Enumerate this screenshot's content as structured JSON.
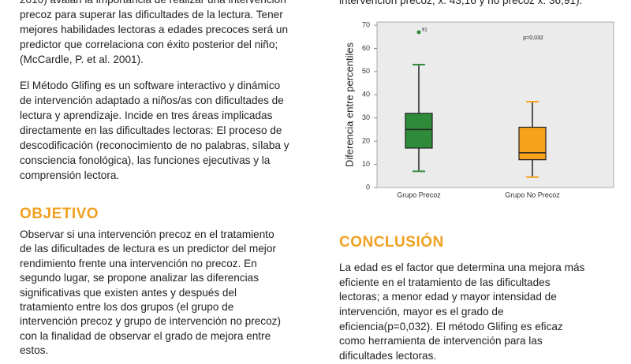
{
  "left_intro": [
    "2010) avalan la importancia de realizar una intervención",
    "precoz para superar las dificultades de la lectura. Tener",
    "mejores habilidades lectoras a edades precoces será un",
    "predictor que correlaciona con éxito posterior del niño;",
    "(McCardle, P. et al. 2001)."
  ],
  "left_method": [
    "El Método Glifing es un software interactivo y dinámico",
    "de intervención adaptado a niños/as con dificultades de",
    "lectura y aprendizaje. Incide en tres áreas implicadas",
    "directamente en las dificultades lectoras: El proceso de",
    "descodificación (reconocimiento de no palabras, sílaba y",
    "consciencia fonológica), las funciones ejecutivas y la",
    "comprensión lectora."
  ],
  "objetivo": {
    "heading": "OBJETIVO",
    "lines": [
      "Observar si una intervención precoz en el tratamiento",
      "de las dificultades de lectura es un predictor del mejor",
      "rendimiento frente una intervención no precoz. En",
      "segundo lugar, se propone analizar las diferencias",
      "significativas que existen antes y después del",
      "tratamiento entre los dos grupos (el grupo de",
      "intervención precoz y grupo de intervención no precoz)",
      "con la finalidad de observar el grado de mejora entre",
      "estos."
    ]
  },
  "right_intro": [
    "intervención precoz; x̄: 43,16 y no precoz x̄: 36,91)."
  ],
  "conclusion": {
    "heading": "CONCLUSIÓN",
    "lines": [
      "La edad es el factor que determina una mejora más",
      "eficiente en el tratamiento de las dificultades",
      "lectoras; a menor edad y mayor intensidad de",
      "intervención, mayor es el grado de",
      "eficiencia(p=0,032). El método Glifing es eficaz",
      "como herramienta de intervención para las",
      "dificultades lectoras."
    ]
  },
  "chart": {
    "type": "box",
    "ylabel": "Diferencia entre percentiles",
    "annotation": "p=0,032",
    "ylim": [
      0,
      70
    ],
    "yticks": [
      0,
      10,
      20,
      30,
      40,
      50,
      60,
      70
    ],
    "categories": [
      "Grupo Precoz",
      "Grupo No Precoz"
    ],
    "series": [
      {
        "color": "#2e8b3a",
        "min": 7,
        "q1": 17,
        "median": 25,
        "q3": 32,
        "max": 53,
        "outliers": [
          67
        ],
        "outlier_labels": [
          "91"
        ]
      },
      {
        "color": "#f7a21b",
        "min": 4.5,
        "q1": 12,
        "median": 15,
        "q3": 26,
        "max": 37,
        "outliers": [],
        "outlier_labels": []
      }
    ]
  }
}
